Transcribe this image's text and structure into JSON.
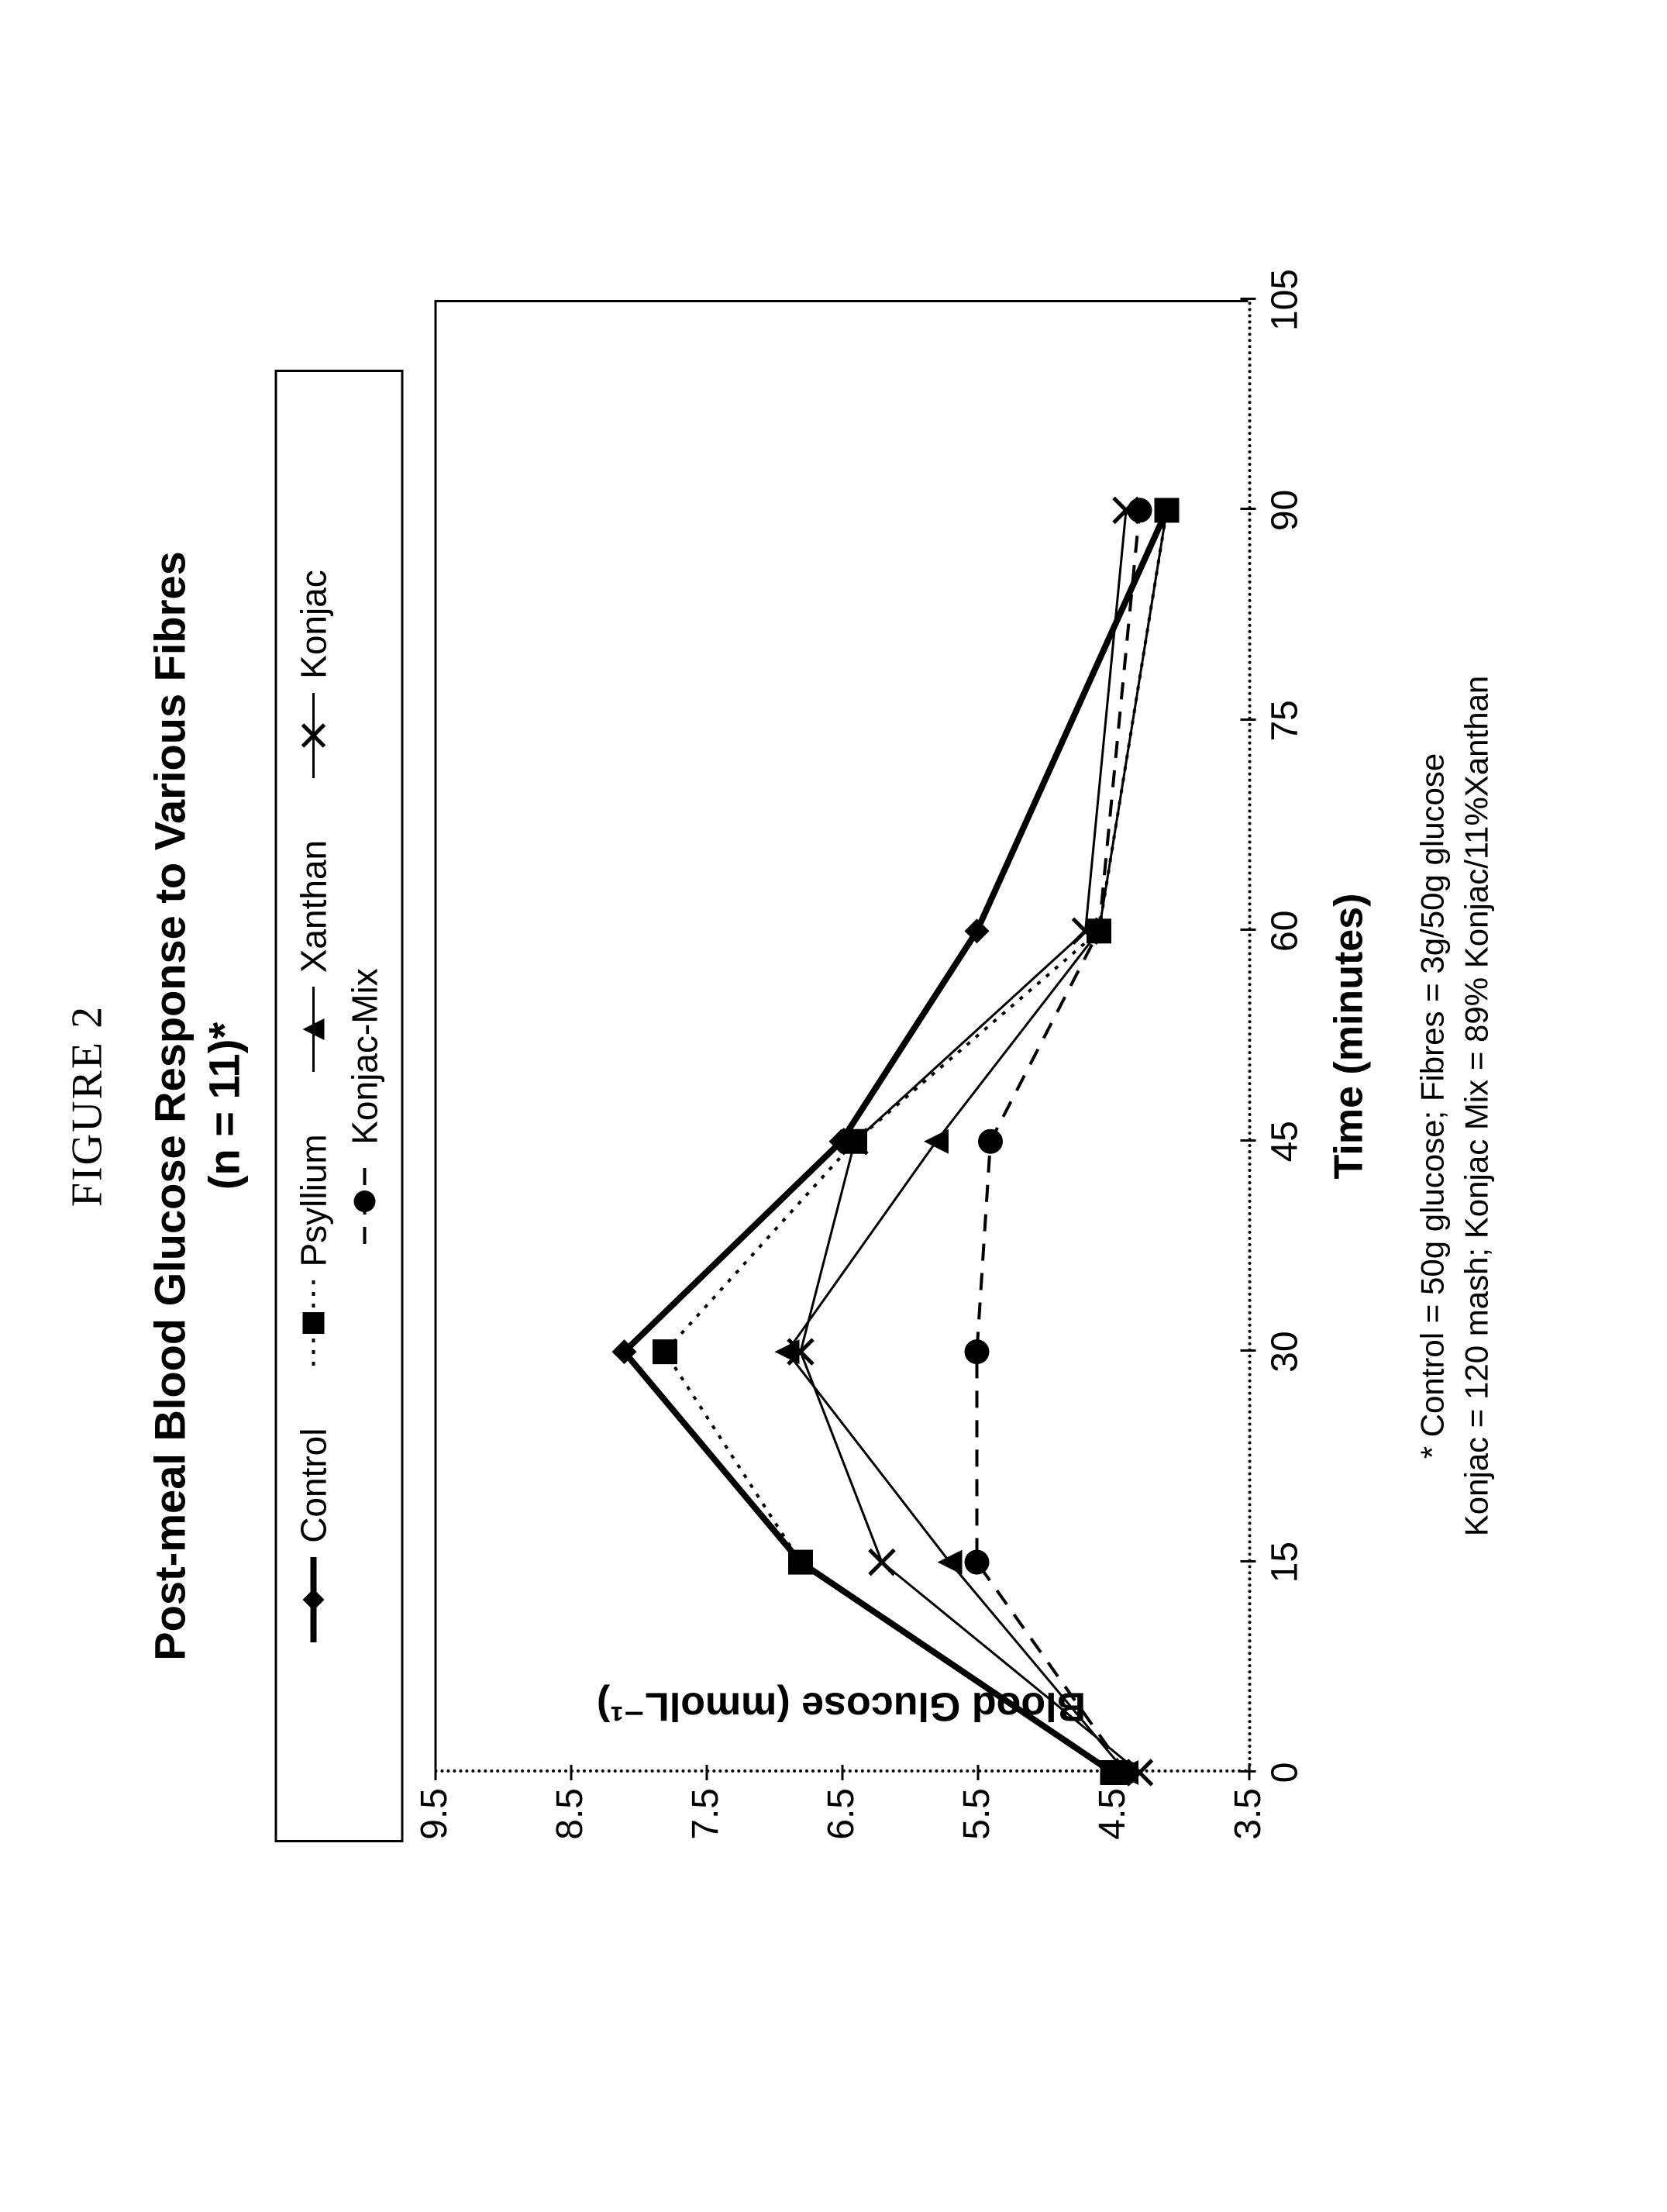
{
  "figure_label": "FIGURE 2",
  "chart": {
    "type": "line",
    "title_line1": "Post-meal Blood Glucose Response to Various Fibres",
    "title_line2": "(n = 11)*",
    "title_fontsize": 56,
    "xlabel": "Time (minutes)",
    "ylabel": "Blood Glucose (mmolL⁻¹)",
    "label_fontsize": 52,
    "tick_fontsize": 48,
    "background_color": "#ffffff",
    "axis_color": "#000000",
    "x_ticks": [
      0,
      15,
      30,
      45,
      60,
      75,
      90,
      105
    ],
    "xlim": [
      0,
      105
    ],
    "y_ticks": [
      3.5,
      4.5,
      5.5,
      6.5,
      7.5,
      8.5,
      9.5
    ],
    "ylim": [
      3.5,
      9.5
    ],
    "series": [
      {
        "name": "Control",
        "marker": "diamond",
        "line_style": "solid",
        "line_width": 8,
        "color": "#000000",
        "x": [
          0,
          15,
          30,
          45,
          60,
          90
        ],
        "y": [
          4.5,
          6.8,
          8.1,
          6.5,
          5.5,
          4.1
        ]
      },
      {
        "name": "Psyllium",
        "marker": "square",
        "line_style": "dot",
        "line_width": 4,
        "color": "#000000",
        "x": [
          0,
          15,
          30,
          45,
          60,
          90
        ],
        "y": [
          4.5,
          6.8,
          7.8,
          6.4,
          4.6,
          4.1
        ]
      },
      {
        "name": "Xanthan",
        "marker": "triangle",
        "line_style": "solid",
        "line_width": 3,
        "color": "#000000",
        "x": [
          0,
          15,
          30,
          45,
          60,
          90
        ],
        "y": [
          4.4,
          5.7,
          6.9,
          5.8,
          4.6,
          4.1
        ]
      },
      {
        "name": "Konjac",
        "marker": "x",
        "line_style": "solid",
        "line_width": 3,
        "color": "#000000",
        "x": [
          0,
          15,
          30,
          45,
          60,
          90
        ],
        "y": [
          4.3,
          6.2,
          6.8,
          6.4,
          4.7,
          4.4
        ]
      },
      {
        "name": "Konjac-Mix",
        "marker": "circle",
        "line_style": "dash",
        "line_width": 4,
        "color": "#000000",
        "x": [
          0,
          15,
          30,
          45,
          60,
          90
        ],
        "y": [
          4.4,
          5.5,
          5.5,
          5.4,
          4.6,
          4.3
        ]
      }
    ],
    "legend": {
      "border_color": "#000000",
      "fontsize": 46,
      "items": [
        "Control",
        "Psyllium",
        "Xanthan",
        "Konjac",
        "Konjac-Mix"
      ]
    },
    "footnote_line1": "* Control = 50g glucose; Fibres = 3g/50g glucose",
    "footnote_line2": "Konjac = 120 mash; Konjac Mix = 89% Konjac/11%Xanthan",
    "footnote_fontsize": 42
  }
}
